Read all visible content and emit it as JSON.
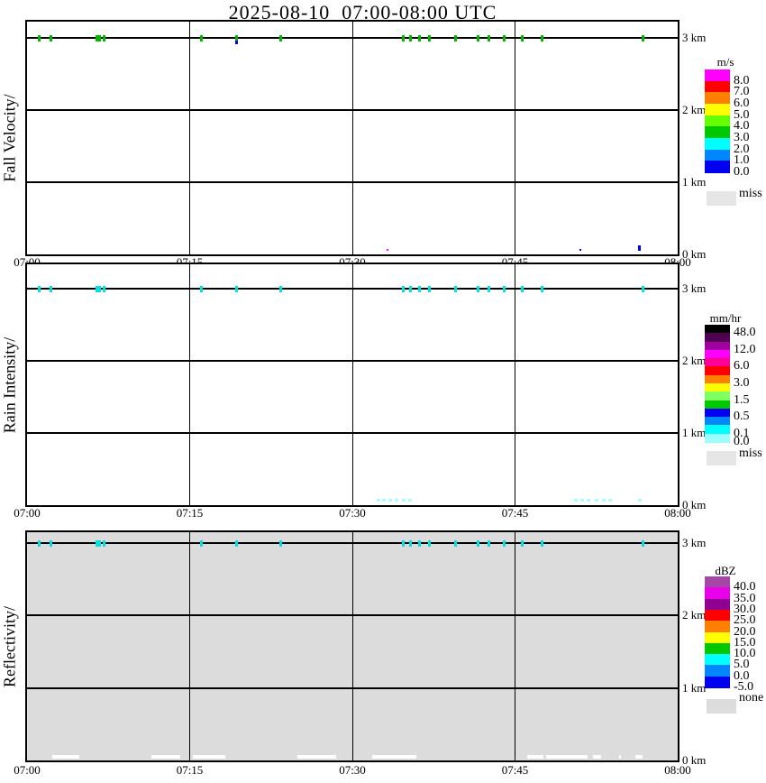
{
  "title": "2025-08-10  07:00-08:00 UTC",
  "x_axis": {
    "tick_labels": [
      "07:00",
      "07:15",
      "07:30",
      "07:45",
      "08:00"
    ]
  },
  "y_axis": {
    "tick_labels": [
      "3 km",
      "2 km",
      "1 km",
      "0 km"
    ]
  },
  "panels": [
    {
      "ylabel": "Fall Velocity/",
      "plot_bg": "#FFFFFF",
      "colorbar": {
        "unit": "m/s",
        "colors": [
          "#FF00FF",
          "#FF0000",
          "#FF8000",
          "#FFFF00",
          "#66FF00",
          "#00C800",
          "#00FFFF",
          "#0087FF",
          "#0000F0"
        ],
        "tick_labels": [
          "8.0",
          "7.0",
          "6.0",
          "5.0",
          "4.0",
          "3.0",
          "2.0",
          "1.0",
          "0.0"
        ],
        "label_at_boundary": [
          1,
          2,
          3,
          4,
          5,
          6,
          7,
          8,
          9
        ],
        "no_data_label": "miss",
        "no_data_color": "#E6E6E6"
      }
    },
    {
      "ylabel": "Rain Intensity/",
      "plot_bg": "#FFFFFF",
      "colorbar": {
        "unit": "mm/hr",
        "colors": [
          "#000000",
          "#500050",
          "#A000A0",
          "#FF00FF",
          "#FF0096",
          "#FF0000",
          "#FF8000",
          "#FFFF00",
          "#80FF60",
          "#00C800",
          "#0000F0",
          "#0087FF",
          "#00FFFF",
          "#9CFFFF"
        ],
        "tick_labels": [
          "48.0",
          "12.0",
          "6.0",
          "3.0",
          "1.5",
          "0.5",
          "0.1",
          "0.0"
        ],
        "label_at_boundary": [
          1,
          3,
          5,
          7,
          9,
          11,
          13,
          14
        ],
        "no_data_label": "miss",
        "no_data_color": "#E6E6E6"
      }
    },
    {
      "ylabel": "Reflectivity/",
      "plot_bg": "#DCDCDC",
      "colorbar": {
        "unit": "dBZ",
        "colors": [
          "#A646A6",
          "#E800E8",
          "#900090",
          "#FF0000",
          "#FF8000",
          "#FFFF00",
          "#00C800",
          "#00FFFF",
          "#0087FF",
          "#0000F0"
        ],
        "tick_labels": [
          "40.0",
          "35.0",
          "30.0",
          "25.0",
          "20.0",
          "15.0",
          "10.0",
          "5.0",
          "0.0",
          "-5.0"
        ],
        "label_at_boundary": [
          1,
          2,
          3,
          4,
          5,
          6,
          7,
          8,
          9,
          10
        ],
        "no_data_label": "none",
        "no_data_color": "#DCDCDC"
      }
    }
  ],
  "chart_data": {
    "type": "heatmap",
    "title": "2025-08-10  07:00-08:00 UTC",
    "x_axis": {
      "start_utc": "07:00",
      "end_utc": "08:00",
      "tick_labels": [
        "07:00",
        "07:15",
        "07:30",
        "07:45",
        "08:00"
      ],
      "gridlines": true
    },
    "y_axis": {
      "unit": "km",
      "range_km": [
        0,
        3.3
      ],
      "tick_labels": [
        "3 km",
        "2 km",
        "1 km",
        "0 km"
      ],
      "gridline_step_km": 1
    },
    "echo_times_min_3km": [
      1.1,
      2.2,
      6.4,
      6.7,
      7.1,
      16.1,
      19.3,
      23.4,
      34.7,
      35.4,
      36.2,
      37.1,
      39.5,
      41.6,
      42.6,
      44.0,
      45.7,
      47.5,
      56.8
    ],
    "panels": [
      {
        "name": "Fall Velocity",
        "unit": "m/s",
        "color_3km": "#00B400",
        "submark_3km": {
          "t_min": 19.3,
          "color": "#0000F0"
        },
        "surface_marks": [
          {
            "t_min": 33.2,
            "km": 0.05,
            "w": 2,
            "h": 2,
            "color": "#FF00FF"
          },
          {
            "t_min": 51.0,
            "km": 0.05,
            "w": 2,
            "h": 2,
            "color": "#0000F0"
          },
          {
            "t_min": 56.5,
            "km": 0.05,
            "w": 3,
            "h": 6,
            "color": "#0000F0"
          }
        ]
      },
      {
        "name": "Rain Intensity",
        "unit": "mm/hr",
        "color_3km": "#00E0E0",
        "surface_mark_color": "#A8FFFF",
        "surface_mark_times_min": [
          32.4,
          32.9,
          33.5,
          34.1,
          34.7,
          35.3,
          50.6,
          51.2,
          51.8,
          52.5,
          53.2,
          53.8,
          56.5
        ]
      },
      {
        "name": "Reflectivity",
        "unit": "dBZ",
        "color_3km": "#00E0E0",
        "no_echo_white_ranges_min": [
          [
            2.3,
            4.8
          ],
          [
            11.5,
            14.1
          ],
          [
            15.3,
            18.3
          ],
          [
            24.9,
            28.5
          ],
          [
            31.8,
            35.9
          ],
          [
            46.1,
            47.6
          ],
          [
            47.9,
            51.7
          ],
          [
            52.2,
            52.9
          ],
          [
            54.6,
            54.8
          ],
          [
            56.1,
            56.8
          ]
        ]
      }
    ]
  }
}
